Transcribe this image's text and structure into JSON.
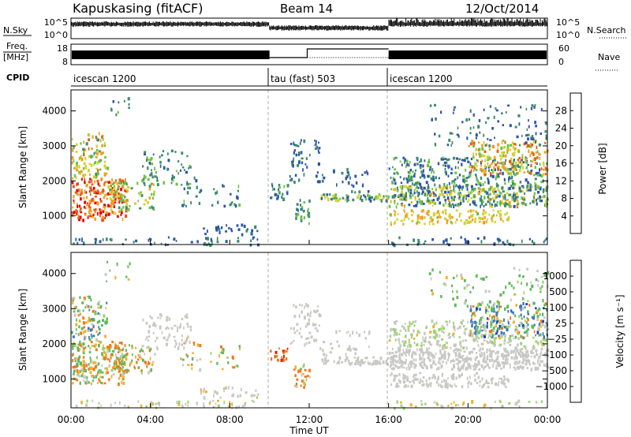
{
  "header": {
    "station": "Kapuskasing (fitACF)",
    "beam": "Beam 14",
    "date": "12/Oct/2014"
  },
  "noise_panel": {
    "left_label": "N.Sky",
    "left_ticks": [
      "10^5",
      "10^0"
    ],
    "right_label": "N.Search",
    "right_ticks": [
      "10^5",
      "10^0"
    ]
  },
  "freq_panel": {
    "left_label_top": "Freq.",
    "left_label_unit": "[MHz]",
    "left_ticks": [
      "18",
      "8"
    ],
    "right_label": "Nave",
    "right_ticks": [
      "60",
      "0"
    ]
  },
  "cpid_panel": {
    "label": "CPID",
    "segments": [
      {
        "name": "icescan 1200",
        "start_hour": 0
      },
      {
        "name": "tau (fast) 503",
        "start_hour": 10
      },
      {
        "name": "icescan 1200",
        "start_hour": 16
      }
    ]
  },
  "chart_data": [
    {
      "type": "heatmap",
      "quantity": "Power",
      "ylabel": "Slant Range [km]",
      "xlabel": "Time UT",
      "x_ticks": [
        "00:00",
        "04:00",
        "08:00",
        "12:00",
        "16:00",
        "20:00",
        "00:00"
      ],
      "xlim_hours": [
        0,
        24
      ],
      "ylim_km": [
        180,
        4600
      ],
      "y_ticks": [
        "1000",
        "2000",
        "3000",
        "4000"
      ],
      "colorbar": {
        "label": "Power [dB]",
        "ticks": [
          "28",
          "24",
          "20",
          "16",
          "12",
          "8",
          "4"
        ],
        "range": [
          0,
          30
        ],
        "colors": [
          "#0000ee",
          "#2d55a8",
          "#3c8c6c",
          "#6ec246",
          "#d2d232",
          "#f0a020",
          "#e85a14",
          "#e00000"
        ]
      },
      "mode_boundaries_hours": [
        10,
        16
      ],
      "grid": false
    },
    {
      "type": "heatmap",
      "quantity": "Velocity",
      "ylabel": "Slant Range [km]",
      "xlabel": "Time UT",
      "x_ticks": [
        "00:00",
        "04:00",
        "08:00",
        "12:00",
        "16:00",
        "20:00",
        "00:00"
      ],
      "xlim_hours": [
        0,
        24
      ],
      "ylim_km": [
        180,
        4600
      ],
      "y_ticks": [
        "1000",
        "2000",
        "3000",
        "4000"
      ],
      "colorbar": {
        "label": "Velocity [m s⁻¹]",
        "ticks": [
          "1000",
          "500",
          "100",
          "25",
          "−25",
          "−100",
          "−500",
          "−1000"
        ],
        "colors": [
          "#1f3fb8",
          "#3a78b8",
          "#5cb85c",
          "#9ad46a",
          "#c8c8c4",
          "#f0b030",
          "#f07818",
          "#e02010",
          "#e00000"
        ]
      },
      "mode_boundaries_hours": [
        10,
        16
      ],
      "grid": false
    }
  ],
  "axis_label_time": "Time UT"
}
